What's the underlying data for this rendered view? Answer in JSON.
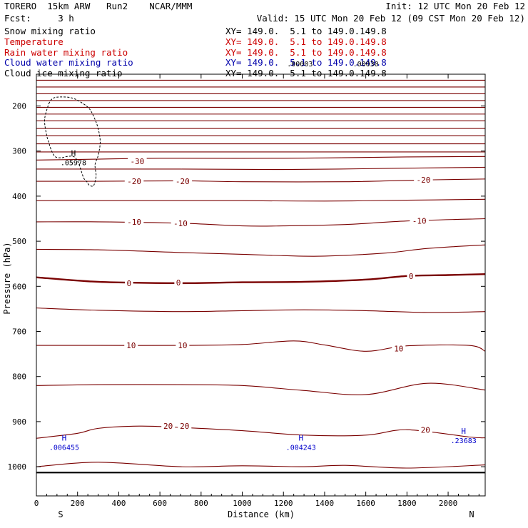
{
  "header": {
    "model": "TORERO  15km ARW   Run2    NCAR/MMM",
    "init": "Init: 12 UTC Mon 20 Feb 12",
    "fcst": "Fcst:     3 h",
    "valid": "Valid: 15 UTC Mon 20 Feb 12 (09 CST Mon 20 Feb 12)"
  },
  "fields": [
    {
      "name": "Snow mixing ratio",
      "xy": "XY= 149.0.  5.1 to 149.0.149.8",
      "color": "#000000"
    },
    {
      "name": "Temperature",
      "xy": "XY= 149.0.  5.1 to 149.0.149.8",
      "color": "#cc0000"
    },
    {
      "name": "Rain water mixing ratio",
      "xy": "XY= 149.0.  5.1 to 149.0.149.8",
      "color": "#cc0000"
    },
    {
      "name": "Cloud water mixing ratio",
      "xy": "XY= 149.0.  5.1 to 149.0.149.8",
      "color": "#0000aa"
    },
    {
      "name": "Cloud ice mixing ratio",
      "xy": "XY= 149.0.  5.1 to 149.0.149.8",
      "color": "#000000"
    }
  ],
  "colors": {
    "contour": "#7a0000",
    "cloudwater": "#0000cc",
    "axis": "#000000"
  },
  "chart_data": {
    "type": "line",
    "xlabel": "Distance (km)",
    "ylabel": "Pressure (hPa)",
    "xlim": [
      0,
      2180
    ],
    "ylim": [
      1050,
      100
    ],
    "xticks": [
      0,
      200,
      400,
      600,
      800,
      1000,
      1200,
      1400,
      1600,
      1800,
      2000
    ],
    "yticks": [
      200,
      300,
      400,
      500,
      600,
      700,
      800,
      900,
      1000
    ],
    "end_labels": {
      "left": "S",
      "right": "N"
    },
    "grid": false,
    "temperature_isotherms": [
      {
        "x": [
          0,
          2180
        ],
        "y": [
          143,
          143
        ]
      },
      {
        "x": [
          0,
          2180
        ],
        "y": [
          158,
          158
        ]
      },
      {
        "x": [
          0,
          2180
        ],
        "y": [
          173,
          173
        ]
      },
      {
        "x": [
          0,
          2180
        ],
        "y": [
          188,
          188
        ]
      },
      {
        "x": [
          0,
          2180
        ],
        "y": [
          203,
          203
        ]
      },
      {
        "x": [
          0,
          2180
        ],
        "y": [
          218,
          218
        ]
      },
      {
        "x": [
          0,
          2180
        ],
        "y": [
          233,
          233
        ]
      },
      {
        "x": [
          0,
          2180
        ],
        "y": [
          250,
          250
        ]
      },
      {
        "x": [
          0,
          2180
        ],
        "y": [
          266,
          266
        ]
      },
      {
        "x": [
          0,
          2180
        ],
        "y": [
          284,
          284
        ]
      },
      {
        "x": [
          0,
          2180
        ],
        "y": [
          302,
          302
        ]
      },
      {
        "x": [
          0,
          300,
          600,
          1200,
          1800,
          2180
        ],
        "y": [
          320,
          318,
          316,
          316,
          313,
          312
        ]
      },
      {
        "x": [
          0,
          300,
          700,
          1200,
          1800,
          2180
        ],
        "y": [
          340,
          340,
          340,
          341,
          338,
          336
        ]
      },
      {
        "x": [
          0,
          300,
          700,
          1000,
          1500,
          1900,
          2180
        ],
        "y": [
          367,
          367,
          366,
          368,
          368,
          364,
          362
        ]
      },
      {
        "x": [
          0,
          500,
          1000,
          1400,
          1800,
          2180
        ],
        "y": [
          410,
          410,
          410,
          411,
          409,
          407
        ]
      },
      {
        "x": [
          0,
          300,
          700,
          1000,
          1200,
          1500,
          1800,
          2180
        ],
        "y": [
          457,
          457,
          460,
          466,
          466,
          463,
          455,
          450
        ]
      },
      {
        "x": [
          0,
          300,
          700,
          1000,
          1200,
          1400,
          1700,
          1900,
          2180
        ],
        "y": [
          518,
          519,
          525,
          529,
          532,
          533,
          526,
          516,
          508
        ]
      },
      {
        "x": [
          0,
          300,
          700,
          1000,
          1300,
          1600,
          1800,
          2000,
          2180
        ],
        "y": [
          580,
          590,
          593,
          591,
          590,
          585,
          577,
          575,
          573
        ]
      },
      {
        "x": [
          0,
          300,
          700,
          1000,
          1300,
          1600,
          1900,
          2180
        ],
        "y": [
          648,
          653,
          656,
          654,
          652,
          654,
          658,
          656
        ]
      },
      {
        "x": [
          0,
          300,
          700,
          1000,
          1250,
          1400,
          1600,
          1800,
          2100,
          2180
        ],
        "y": [
          731,
          731,
          731,
          729,
          721,
          730,
          744,
          732,
          731,
          744
        ]
      },
      {
        "x": [
          0,
          300,
          700,
          1000,
          1300,
          1600,
          1900,
          2180
        ],
        "y": [
          820,
          818,
          818,
          820,
          831,
          840,
          815,
          830
        ]
      },
      {
        "x": [
          0,
          200,
          300,
          500,
          700,
          1000,
          1300,
          1600,
          1800,
          2100,
          2180
        ],
        "y": [
          937,
          926,
          915,
          910,
          913,
          920,
          930,
          930,
          918,
          934,
          936
        ]
      },
      {
        "x": [
          0,
          300,
          700,
          1000,
          1300,
          1500,
          1800,
          2180
        ],
        "y": [
          1000,
          990,
          1000,
          998,
          1000,
          997,
          1003,
          996
        ]
      }
    ],
    "contour_labels": [
      {
        "text": "-30",
        "x": 490,
        "y": 323
      },
      {
        "text": "-20",
        "x": 475,
        "y": 367
      },
      {
        "text": "-20",
        "x": 710,
        "y": 367
      },
      {
        "text": "-20",
        "x": 1880,
        "y": 364
      },
      {
        "text": "-10",
        "x": 475,
        "y": 457
      },
      {
        "text": "-10",
        "x": 700,
        "y": 460
      },
      {
        "text": "-10",
        "x": 1860,
        "y": 455
      },
      {
        "text": "0",
        "x": 450,
        "y": 593
      },
      {
        "text": "0",
        "x": 690,
        "y": 592
      },
      {
        "text": "0",
        "x": 1820,
        "y": 577
      },
      {
        "text": "10",
        "x": 460,
        "y": 731
      },
      {
        "text": "10",
        "x": 710,
        "y": 731
      },
      {
        "text": "10",
        "x": 1760,
        "y": 738
      },
      {
        "text": "20",
        "x": 640,
        "y": 910
      },
      {
        "text": "20",
        "x": 720,
        "y": 910
      },
      {
        "text": "20",
        "x": 1890,
        "y": 918
      }
    ],
    "snow_region": {
      "x": [
        60,
        80,
        120,
        170,
        210,
        255,
        280,
        300,
        310,
        300,
        285,
        290,
        280,
        270,
        255,
        245,
        230,
        215,
        200,
        180,
        150,
        120,
        90,
        70,
        60,
        50,
        40,
        60
      ],
      "y": [
        195,
        183,
        180,
        182,
        190,
        205,
        225,
        250,
        280,
        310,
        330,
        355,
        375,
        378,
        375,
        368,
        360,
        340,
        322,
        312,
        312,
        315,
        312,
        295,
        280,
        265,
        230,
        195
      ]
    },
    "extrema": [
      {
        "label": "H",
        "value": ".05978",
        "x": 180,
        "y": 314,
        "color": "#000000"
      },
      {
        "label": "H",
        "value": ".006455",
        "x": 135,
        "y": 945,
        "color": "#0000cc"
      },
      {
        "label": "H",
        "value": ".004243",
        "x": 1285,
        "y": 945,
        "color": "#0000cc"
      },
      {
        "label": "H",
        "value": ".23683",
        "x": 2075,
        "y": 930,
        "color": "#0000cc"
      }
    ],
    "top_values": [
      {
        "text": ".00003",
        "x": 1280,
        "y": 112
      },
      {
        "text": ".00030",
        "x": 1600,
        "y": 112
      }
    ]
  }
}
